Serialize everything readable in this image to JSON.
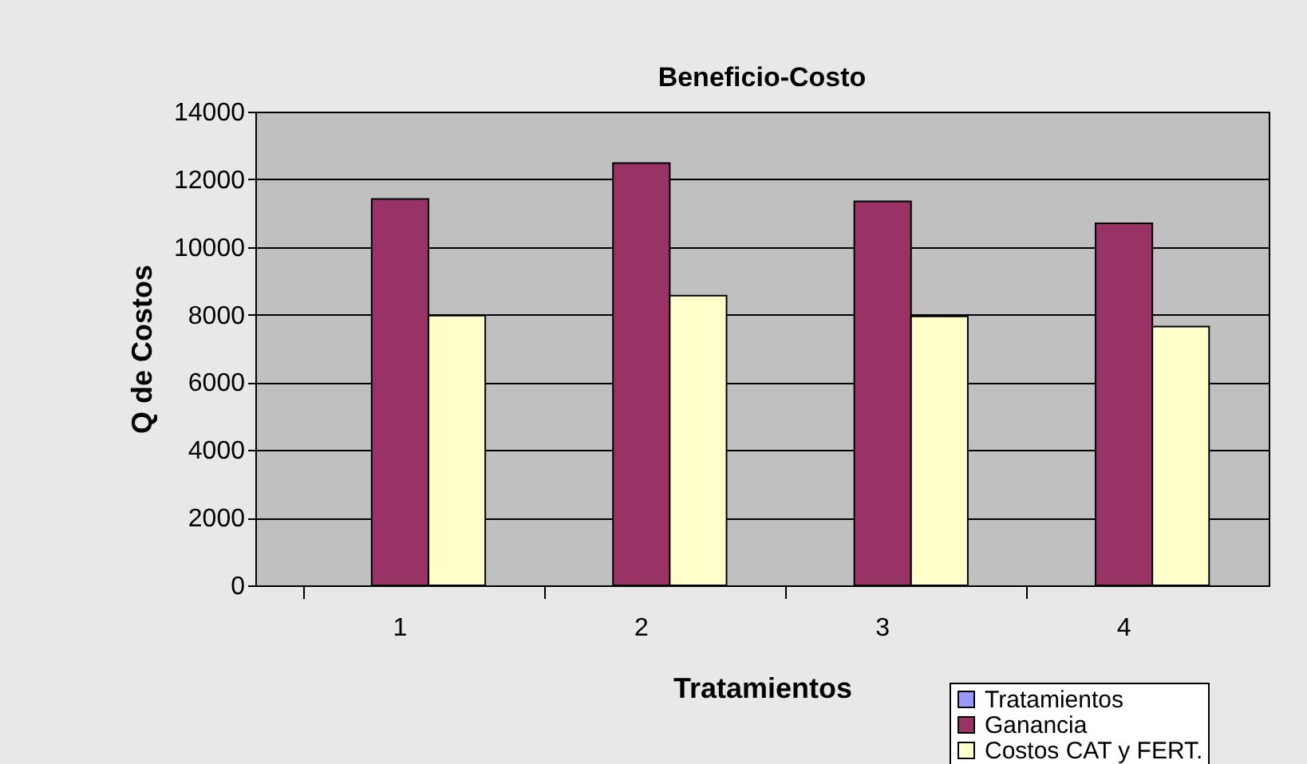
{
  "chart_data": {
    "type": "bar",
    "title": "Beneficio-Costo",
    "xlabel": "Tratamientos",
    "ylabel": "Q de Costos",
    "categories": [
      "1",
      "2",
      "3",
      "4"
    ],
    "series": [
      {
        "name": "Tratamientos",
        "color": "#9999ff",
        "values": [
          null,
          null,
          null,
          null
        ]
      },
      {
        "name": "Ganancia",
        "color": "#993366",
        "values": [
          11420,
          12480,
          11350,
          10700
        ]
      },
      {
        "name": "Costos CAT y FERT.",
        "color": "#ffffcc",
        "values": [
          7970,
          8560,
          7950,
          7650
        ]
      }
    ],
    "ylim": [
      0,
      14000
    ],
    "yticks": [
      0,
      2000,
      4000,
      6000,
      8000,
      10000,
      12000,
      14000
    ],
    "grid": "y",
    "legend": "bottom right"
  }
}
